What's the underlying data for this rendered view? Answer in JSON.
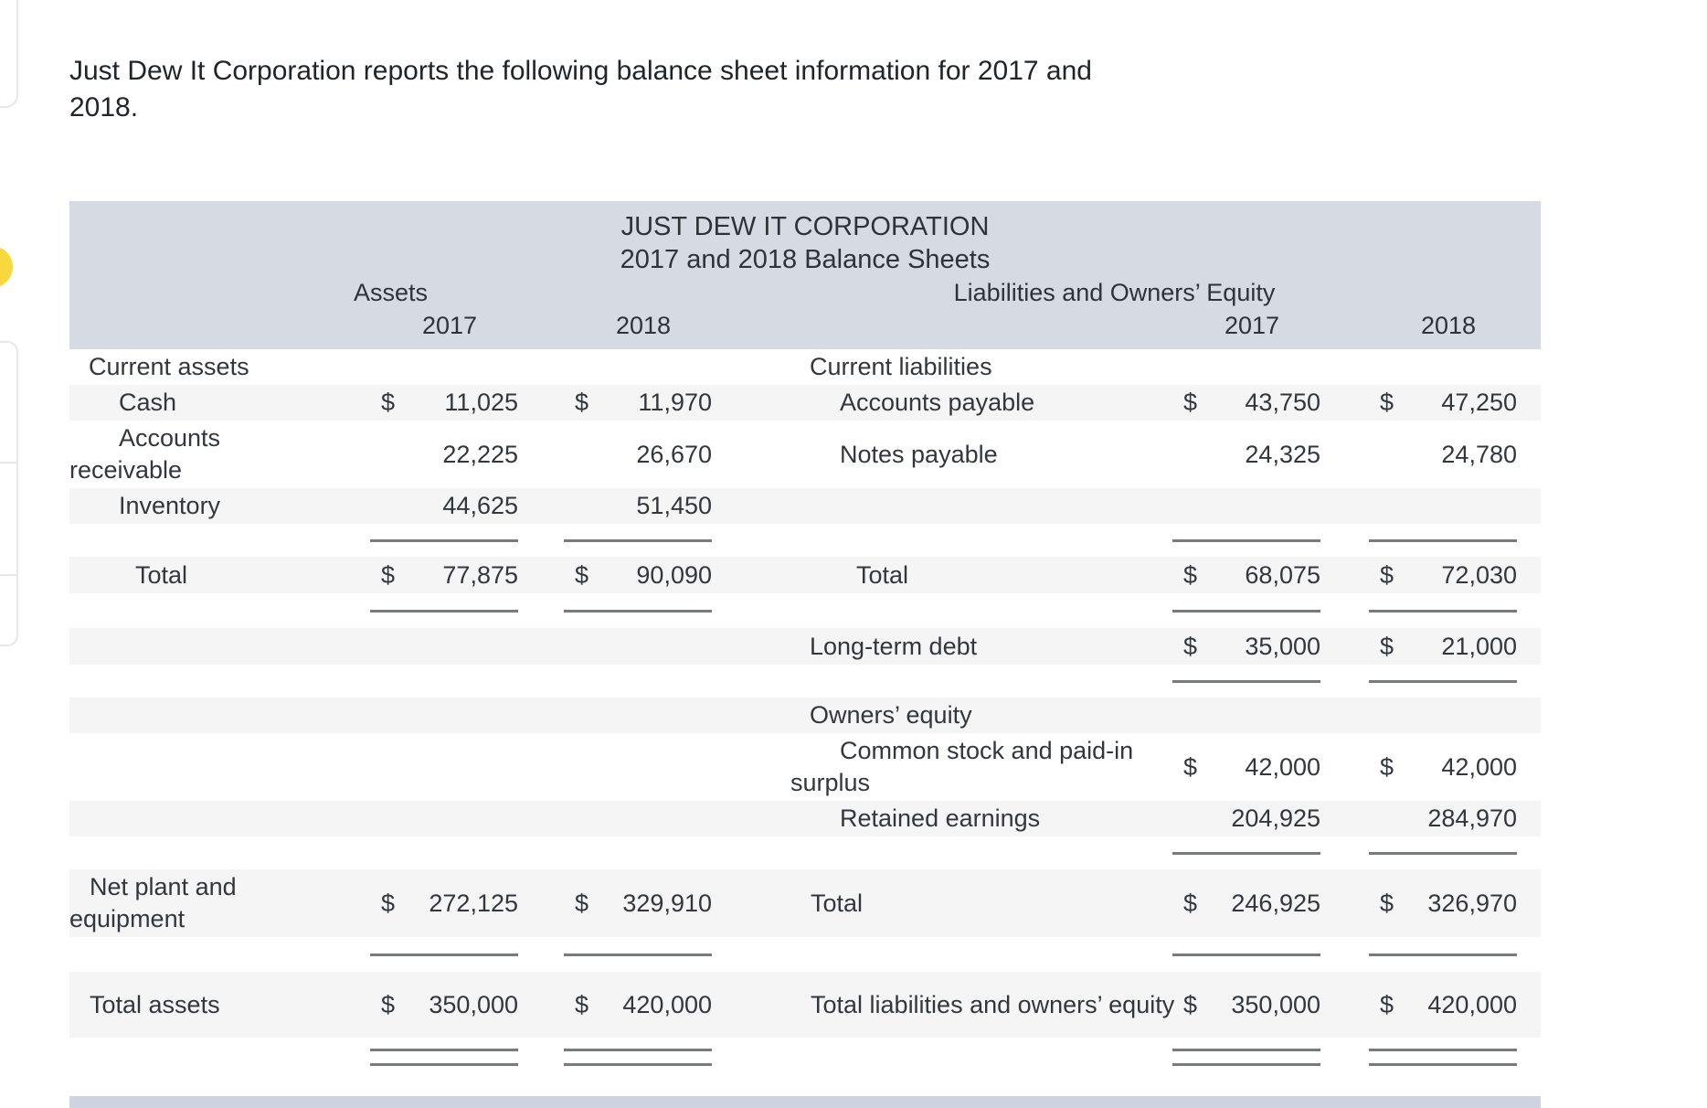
{
  "intro_text": "Just Dew It Corporation reports the following balance sheet information for 2017 and 2018.",
  "table": {
    "title": "JUST DEW IT CORPORATION",
    "subtitle": "2017 and 2018 Balance Sheets",
    "left_section_heading": "Assets",
    "right_section_heading": "Liabilities and Owners’ Equity",
    "year_cols": [
      "2017",
      "2018",
      "2017",
      "2018"
    ],
    "rows": [
      {
        "kind": "data",
        "stripe": false,
        "left": {
          "label": "Current assets",
          "indent": "section"
        },
        "right": {
          "label": "Current liabilities",
          "indent": "section"
        }
      },
      {
        "kind": "data",
        "stripe": true,
        "left": {
          "label": "Cash",
          "indent": "item",
          "cur1": "$",
          "val1": "11,025",
          "cur2": "$",
          "val2": "11,970"
        },
        "right": {
          "label": "Accounts payable",
          "indent": "item",
          "cur1": "$",
          "val1": "43,750",
          "cur2": "$",
          "val2": "47,250"
        }
      },
      {
        "kind": "data",
        "stripe": false,
        "left": {
          "label": "Accounts receivable",
          "indent": "item",
          "val1": "22,225",
          "val2": "26,670"
        },
        "right": {
          "label": "Notes payable",
          "indent": "item",
          "val1": "24,325",
          "val2": "24,780"
        }
      },
      {
        "kind": "data",
        "stripe": true,
        "left": {
          "label": "Inventory",
          "indent": "item",
          "val1": "44,625",
          "val2": "51,450"
        },
        "right": {}
      },
      {
        "kind": "rule",
        "stripe": false,
        "left_rule": true,
        "right_rule": true
      },
      {
        "kind": "data",
        "stripe": true,
        "left": {
          "label": "Total",
          "indent": "total",
          "cur1": "$",
          "val1": "77,875",
          "cur2": "$",
          "val2": "90,090"
        },
        "right": {
          "label": "Total",
          "indent": "total",
          "cur1": "$",
          "val1": "68,075",
          "cur2": "$",
          "val2": "72,030"
        }
      },
      {
        "kind": "rule",
        "stripe": false,
        "left_rule": true,
        "right_rule": true
      },
      {
        "kind": "data",
        "stripe": true,
        "left": {},
        "right": {
          "label": "Long-term debt",
          "indent": "section",
          "cur1": "$",
          "val1": "35,000",
          "cur2": "$",
          "val2": "21,000"
        }
      },
      {
        "kind": "rule",
        "stripe": false,
        "left_rule": false,
        "right_rule": true
      },
      {
        "kind": "data",
        "stripe": true,
        "left": {},
        "right": {
          "label": "Owners’ equity",
          "indent": "section"
        }
      },
      {
        "kind": "data",
        "stripe": false,
        "left": {},
        "right": {
          "label": "Common stock and paid-in surplus",
          "indent": "item",
          "cur1": "$",
          "val1": "42,000",
          "cur2": "$",
          "val2": "42,000"
        }
      },
      {
        "kind": "data",
        "stripe": true,
        "left": {},
        "right": {
          "label": "Retained earnings",
          "indent": "item",
          "val1": "204,925",
          "val2": "284,970"
        }
      },
      {
        "kind": "rule",
        "stripe": false,
        "left_rule": false,
        "right_rule": true
      },
      {
        "kind": "data",
        "stripe": true,
        "left": {
          "label": "Net plant and equipment",
          "indent": "flat",
          "cur1": "$",
          "val1": "272,125",
          "cur2": "$",
          "val2": "329,910"
        },
        "right": {
          "label": "Total",
          "indent": "flat",
          "cur1": "$",
          "val1": "246,925",
          "cur2": "$",
          "val2": "326,970"
        }
      },
      {
        "kind": "rule",
        "stripe": false,
        "left_rule": true,
        "right_rule": true
      },
      {
        "kind": "data",
        "stripe": true,
        "left": {
          "label": "Total assets",
          "indent": "flat",
          "cur1": "$",
          "val1": "350,000",
          "cur2": "$",
          "val2": "420,000"
        },
        "right": {
          "label": "Total liabilities and owners’ equity",
          "indent": "flat",
          "cur1": "$",
          "val1": "350,000",
          "cur2": "$",
          "val2": "420,000"
        }
      },
      {
        "kind": "rule2",
        "stripe": false,
        "left_rule": true,
        "right_rule": true
      }
    ]
  },
  "colors": {
    "header_band": "#d5dae3",
    "footer_band": "#cdd3e0",
    "row_stripe": "#f5f5f6",
    "sum_rule": "#777b80",
    "highlight_yellow": "#f8d83f"
  }
}
